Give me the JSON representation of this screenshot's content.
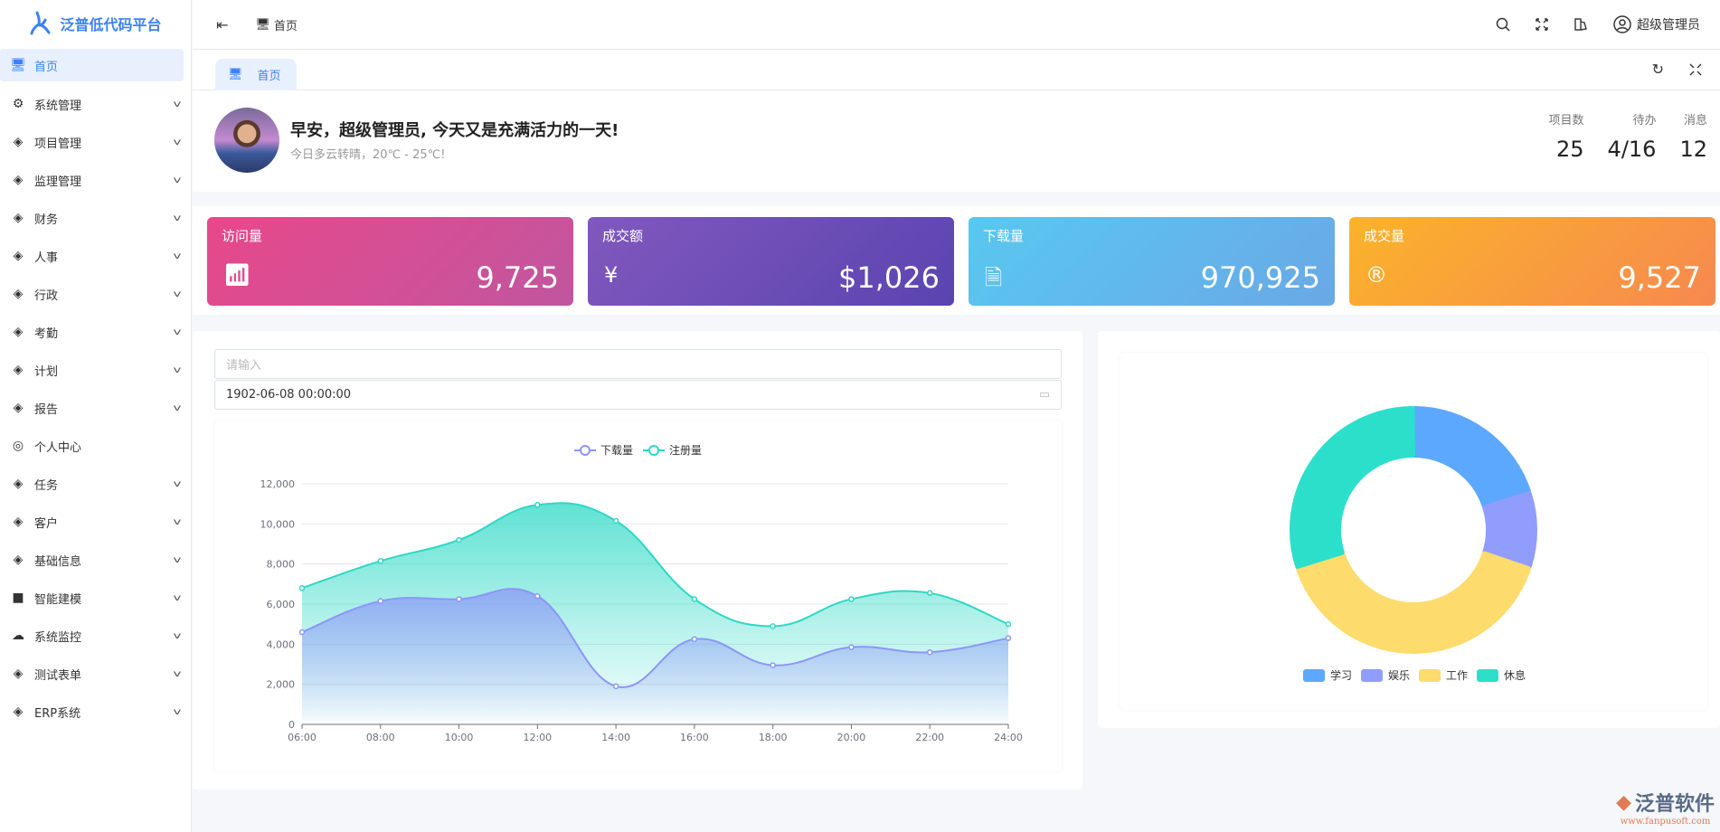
{
  "app": {
    "title": "泛普低代码平台"
  },
  "sidebar": {
    "items": [
      {
        "label": "首页",
        "icon": "monitor-icon",
        "active": true,
        "expandable": false
      },
      {
        "label": "系统管理",
        "icon": "gear-icon",
        "expandable": true
      },
      {
        "label": "项目管理",
        "icon": "layers-icon",
        "expandable": true
      },
      {
        "label": "监理管理",
        "icon": "layers-icon",
        "expandable": true
      },
      {
        "label": "财务",
        "icon": "layers-icon",
        "expandable": true
      },
      {
        "label": "人事",
        "icon": "layers-icon",
        "expandable": true
      },
      {
        "label": "行政",
        "icon": "layers-icon",
        "expandable": true
      },
      {
        "label": "考勤",
        "icon": "layers-icon",
        "expandable": true
      },
      {
        "label": "计划",
        "icon": "layers-icon",
        "expandable": true
      },
      {
        "label": "报告",
        "icon": "layers-icon",
        "expandable": true
      },
      {
        "label": "个人中心",
        "icon": "user-circle-icon",
        "expandable": false
      },
      {
        "label": "任务",
        "icon": "layers-icon",
        "expandable": true
      },
      {
        "label": "客户",
        "icon": "layers-icon",
        "expandable": true
      },
      {
        "label": "基础信息",
        "icon": "layers-icon",
        "expandable": true
      },
      {
        "label": "智能建模",
        "icon": "cube-icon",
        "expandable": true
      },
      {
        "label": "系统监控",
        "icon": "cloud-icon",
        "expandable": true
      },
      {
        "label": "测试表单",
        "icon": "layers-icon",
        "expandable": true
      },
      {
        "label": "ERP系统",
        "icon": "layers-icon",
        "expandable": true
      }
    ]
  },
  "header": {
    "breadcrumb": "首页",
    "user": "超级管理员"
  },
  "tabs": [
    {
      "label": "首页"
    }
  ],
  "welcome": {
    "greeting": "早安，超级管理员, 今天又是充满活力的一天!",
    "weather": "今日多云转晴，20℃ - 25℃!",
    "stats": [
      {
        "label": "项目数",
        "value": "25"
      },
      {
        "label": "待办",
        "value": "4/16"
      },
      {
        "label": "消息",
        "value": "12"
      }
    ]
  },
  "cards": [
    {
      "title": "访问量",
      "value": "9,725",
      "icon": "bar-chart-icon",
      "colors": [
        "#e8488a",
        "#c0569f"
      ]
    },
    {
      "title": "成交额",
      "value": "$1,026",
      "icon": "yen-icon",
      "colors": [
        "#8158bd",
        "#5a44b0"
      ]
    },
    {
      "title": "下载量",
      "value": "970,925",
      "icon": "file-download-icon",
      "colors": [
        "#58c8f0",
        "#6aa8e6"
      ]
    },
    {
      "title": "成交量",
      "value": "9,527",
      "icon": "registered-icon",
      "colors": [
        "#fbb32a",
        "#f6894f"
      ]
    }
  ],
  "form": {
    "search_placeholder": "请输入",
    "datetime": "1902-06-08 00:00:00"
  },
  "chart_data": [
    {
      "type": "area",
      "x": [
        "06:00",
        "08:00",
        "10:00",
        "12:00",
        "14:00",
        "16:00",
        "18:00",
        "20:00",
        "22:00",
        "24:00"
      ],
      "ylim": [
        0,
        12000
      ],
      "yticks": [
        "0",
        "2,000",
        "4,000",
        "6,000",
        "8,000",
        "10,000",
        "12,000"
      ],
      "legend": "top-center",
      "grid": true,
      "series": [
        {
          "name": "下载量",
          "color": "#8c96f7",
          "values": [
            4600,
            6150,
            6250,
            6400,
            1900,
            4250,
            2950,
            3850,
            3600,
            4300
          ]
        },
        {
          "name": "注册量",
          "color": "#2bd9c5",
          "values": [
            6800,
            8150,
            9200,
            10950,
            10150,
            6250,
            4900,
            6250,
            6550,
            5000
          ]
        }
      ]
    },
    {
      "type": "pie",
      "donut": true,
      "legend": "bottom-center",
      "categories": [
        "学习",
        "娱乐",
        "工作",
        "休息"
      ],
      "values": [
        20,
        10,
        40,
        30
      ],
      "colors": [
        "#5ca8ff",
        "#909dfd",
        "#fddb6d",
        "#2bdfcb"
      ]
    }
  ],
  "watermark": {
    "brand": "泛普软件",
    "url": "www.fanpusoft.com"
  }
}
